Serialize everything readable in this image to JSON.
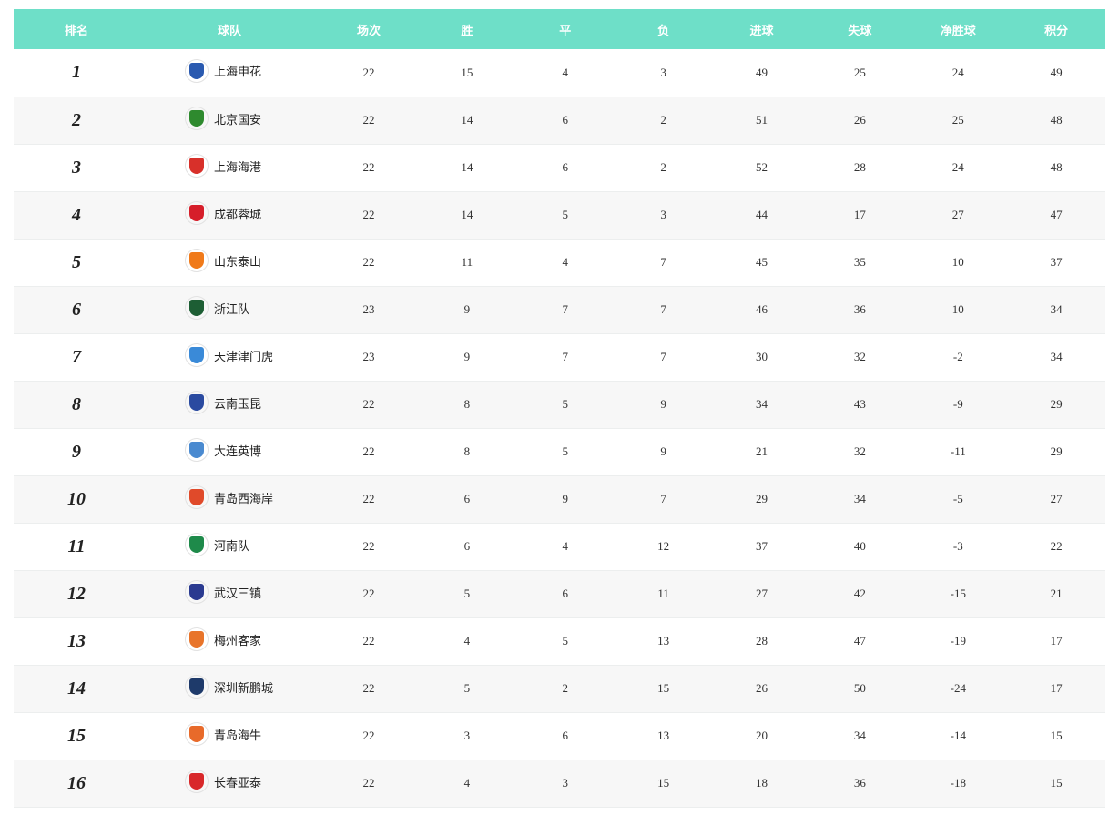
{
  "headers": [
    "排名",
    "球队",
    "场次",
    "胜",
    "平",
    "负",
    "进球",
    "失球",
    "净胜球",
    "积分"
  ],
  "rows": [
    {
      "rank": "1",
      "team": "上海申花",
      "color": "#2a5ab0",
      "p": "22",
      "w": "15",
      "d": "4",
      "l": "3",
      "gf": "49",
      "ga": "25",
      "gd": "24",
      "pts": "49"
    },
    {
      "rank": "2",
      "team": "北京国安",
      "color": "#2e8a2e",
      "p": "22",
      "w": "14",
      "d": "6",
      "l": "2",
      "gf": "51",
      "ga": "26",
      "gd": "25",
      "pts": "48"
    },
    {
      "rank": "3",
      "team": "上海海港",
      "color": "#d8302a",
      "p": "22",
      "w": "14",
      "d": "6",
      "l": "2",
      "gf": "52",
      "ga": "28",
      "gd": "24",
      "pts": "48"
    },
    {
      "rank": "4",
      "team": "成都蓉城",
      "color": "#d61e2a",
      "p": "22",
      "w": "14",
      "d": "5",
      "l": "3",
      "gf": "44",
      "ga": "17",
      "gd": "27",
      "pts": "47"
    },
    {
      "rank": "5",
      "team": "山东泰山",
      "color": "#f07a1a",
      "p": "22",
      "w": "11",
      "d": "4",
      "l": "7",
      "gf": "45",
      "ga": "35",
      "gd": "10",
      "pts": "37"
    },
    {
      "rank": "6",
      "team": "浙江队",
      "color": "#1d5e34",
      "p": "23",
      "w": "9",
      "d": "7",
      "l": "7",
      "gf": "46",
      "ga": "36",
      "gd": "10",
      "pts": "34"
    },
    {
      "rank": "7",
      "team": "天津津门虎",
      "color": "#3a8ad8",
      "p": "23",
      "w": "9",
      "d": "7",
      "l": "7",
      "gf": "30",
      "ga": "32",
      "gd": "-2",
      "pts": "34"
    },
    {
      "rank": "8",
      "team": "云南玉昆",
      "color": "#2a4aa0",
      "p": "22",
      "w": "8",
      "d": "5",
      "l": "9",
      "gf": "34",
      "ga": "43",
      "gd": "-9",
      "pts": "29"
    },
    {
      "rank": "9",
      "team": "大连英博",
      "color": "#4a8ad0",
      "p": "22",
      "w": "8",
      "d": "5",
      "l": "9",
      "gf": "21",
      "ga": "32",
      "gd": "-11",
      "pts": "29"
    },
    {
      "rank": "10",
      "team": "青岛西海岸",
      "color": "#e04a2a",
      "p": "22",
      "w": "6",
      "d": "9",
      "l": "7",
      "gf": "29",
      "ga": "34",
      "gd": "-5",
      "pts": "27"
    },
    {
      "rank": "11",
      "team": "河南队",
      "color": "#1e8a4a",
      "p": "22",
      "w": "6",
      "d": "4",
      "l": "12",
      "gf": "37",
      "ga": "40",
      "gd": "-3",
      "pts": "22"
    },
    {
      "rank": "12",
      "team": "武汉三镇",
      "color": "#2a3a90",
      "p": "22",
      "w": "5",
      "d": "6",
      "l": "11",
      "gf": "27",
      "ga": "42",
      "gd": "-15",
      "pts": "21"
    },
    {
      "rank": "13",
      "team": "梅州客家",
      "color": "#e8742a",
      "p": "22",
      "w": "4",
      "d": "5",
      "l": "13",
      "gf": "28",
      "ga": "47",
      "gd": "-19",
      "pts": "17"
    },
    {
      "rank": "14",
      "team": "深圳新鹏城",
      "color": "#1e3a6a",
      "p": "22",
      "w": "5",
      "d": "2",
      "l": "15",
      "gf": "26",
      "ga": "50",
      "gd": "-24",
      "pts": "17"
    },
    {
      "rank": "15",
      "team": "青岛海牛",
      "color": "#e86a2a",
      "p": "22",
      "w": "3",
      "d": "6",
      "l": "13",
      "gf": "20",
      "ga": "34",
      "gd": "-14",
      "pts": "15"
    },
    {
      "rank": "16",
      "team": "长春亚泰",
      "color": "#d8282a",
      "p": "22",
      "w": "4",
      "d": "3",
      "l": "15",
      "gf": "18",
      "ga": "36",
      "gd": "-18",
      "pts": "15"
    }
  ]
}
